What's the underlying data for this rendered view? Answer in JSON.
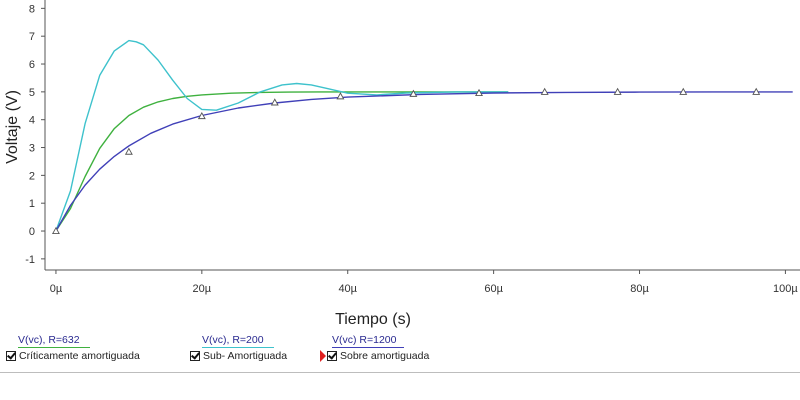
{
  "chart_data": {
    "type": "line",
    "xlabel": "Tiempo (s)",
    "ylabel": "Voltaje (V)",
    "xlim": [
      -1.5,
      102
    ],
    "ylim": [
      -1.4,
      8.3
    ],
    "x_ticks": [
      0,
      20,
      40,
      60,
      80,
      100
    ],
    "x_tick_labels": [
      "0µ",
      "20µ",
      "40µ",
      "60µ",
      "80µ",
      "100µ"
    ],
    "y_ticks": [
      -1,
      0,
      1,
      2,
      3,
      4,
      5,
      6,
      7,
      8
    ],
    "y_tick_labels": [
      "-1",
      "0",
      "1",
      "2",
      "3",
      "4",
      "5",
      "6",
      "7",
      "8"
    ],
    "series": [
      {
        "name": "V(vc), R=632",
        "description": "Críticamente amortiguada",
        "color": "#3fb13f",
        "x": [
          0,
          2,
          4,
          6,
          8,
          10,
          12,
          14,
          16,
          18,
          20,
          24,
          28,
          32,
          36,
          40,
          45,
          50,
          55,
          62
        ],
        "y": [
          0,
          0.81,
          1.96,
          2.97,
          3.68,
          4.15,
          4.45,
          4.64,
          4.76,
          4.84,
          4.89,
          4.95,
          4.98,
          4.99,
          5.0,
          5.0,
          5.0,
          5.0,
          5.0,
          5.0
        ]
      },
      {
        "name": "V(vc), R=200",
        "description": "Sub- Amortiguada",
        "color": "#3ec2cc",
        "x": [
          0,
          2,
          4,
          6,
          8,
          10,
          11,
          12,
          14,
          16,
          18,
          20,
          22,
          25,
          28,
          31,
          33,
          35,
          37,
          40,
          44,
          48,
          55,
          62
        ],
        "y": [
          0,
          1.44,
          3.86,
          5.59,
          6.47,
          6.84,
          6.8,
          6.69,
          6.14,
          5.42,
          4.76,
          4.37,
          4.34,
          4.6,
          5.0,
          5.25,
          5.3,
          5.25,
          5.13,
          4.95,
          4.89,
          4.96,
          5.0,
          5.0
        ]
      },
      {
        "name": "V(vc) R=1200",
        "description": "Sobre amortiguada",
        "color": "#4040b8",
        "marker": "triangle",
        "x": [
          0,
          2,
          4,
          6,
          8,
          10,
          13,
          16,
          20,
          25,
          30,
          35,
          40,
          50,
          60,
          70,
          80,
          90,
          101
        ],
        "y": [
          0,
          0.92,
          1.65,
          2.22,
          2.68,
          3.06,
          3.51,
          3.84,
          4.15,
          4.42,
          4.6,
          4.73,
          4.81,
          4.91,
          4.96,
          4.98,
          4.99,
          5.0,
          5.0
        ],
        "marker_x": [
          0,
          10,
          20,
          30,
          39,
          49,
          58,
          67,
          77,
          86,
          96
        ],
        "marker_y": [
          0,
          2.85,
          4.13,
          4.62,
          4.84,
          4.93,
          4.96,
          5.0,
          5.0,
          5.0,
          5.0
        ]
      }
    ],
    "grid": false,
    "legend_position": "bottom"
  }
}
